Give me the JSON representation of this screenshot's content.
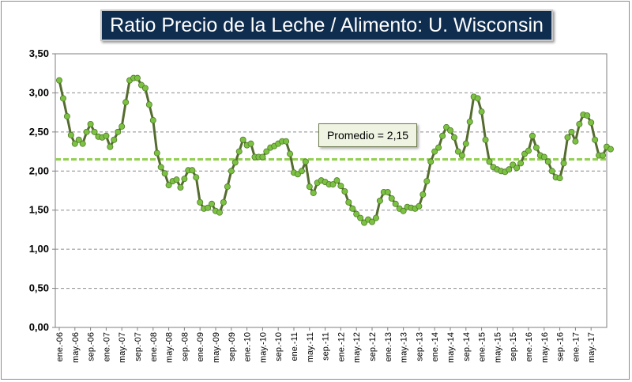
{
  "chart_data": {
    "type": "line",
    "title": "Ratio Precio de la Leche / Alimento: U. Wisconsin",
    "xlabel": "",
    "ylabel": "",
    "ylim": [
      0,
      3.5
    ],
    "yticks": [
      "0,00",
      "0,50",
      "1,00",
      "1,50",
      "2,00",
      "2,50",
      "3,00",
      "3,50"
    ],
    "ytick_values": [
      0,
      0.5,
      1.0,
      1.5,
      2.0,
      2.5,
      3.0,
      3.5
    ],
    "xtick_labels": [
      "ene.-06",
      "may.-06",
      "sep.-06",
      "ene.-07",
      "may.-07",
      "sep.-07",
      "ene.-08",
      "may.-08",
      "sep.-08",
      "ene.-09",
      "may.-09",
      "sep.-09",
      "ene.-10",
      "may.-10",
      "sep.-10",
      "ene.-11",
      "may.-11",
      "sep.-11",
      "ene.-12",
      "may.-12",
      "sep.-12",
      "ene.-13",
      "may.-13",
      "sep.-13",
      "ene.-14",
      "may.-14",
      "sep.-14",
      "ene.-15",
      "may.-15",
      "sep.-15",
      "ene.-16",
      "may.-16",
      "sep.-16",
      "ene.-17",
      "may.-17"
    ],
    "grid": "horizontal dashed",
    "series": [
      {
        "color": "#556b2f",
        "marker_color": "#7cc242",
        "values": [
          3.16,
          2.93,
          2.7,
          2.46,
          2.35,
          2.4,
          2.35,
          2.5,
          2.6,
          2.5,
          2.44,
          2.43,
          2.45,
          2.31,
          2.4,
          2.5,
          2.57,
          2.88,
          3.16,
          3.19,
          3.19,
          3.1,
          3.06,
          2.85,
          2.65,
          2.23,
          2.05,
          1.97,
          1.82,
          1.87,
          1.89,
          1.79,
          1.9,
          2.01,
          2.01,
          1.92,
          1.6,
          1.52,
          1.53,
          1.58,
          1.49,
          1.47,
          1.6,
          1.8,
          2.0,
          2.11,
          2.25,
          2.4,
          2.33,
          2.35,
          2.18,
          2.18,
          2.18,
          2.25,
          2.3,
          2.32,
          2.35,
          2.38,
          2.38,
          2.22,
          1.98,
          1.96,
          2.0,
          2.12,
          1.8,
          1.72,
          1.85,
          1.88,
          1.86,
          1.83,
          1.83,
          1.88,
          1.81,
          1.74,
          1.6,
          1.52,
          1.45,
          1.4,
          1.34,
          1.38,
          1.35,
          1.4,
          1.62,
          1.73,
          1.73,
          1.65,
          1.58,
          1.52,
          1.49,
          1.54,
          1.53,
          1.52,
          1.55,
          1.7,
          1.87,
          2.12,
          2.25,
          2.3,
          2.45,
          2.56,
          2.52,
          2.43,
          2.25,
          2.2,
          2.35,
          2.63,
          2.95,
          2.93,
          2.76,
          2.4,
          2.12,
          2.05,
          2.02,
          2.0,
          1.99,
          2.02,
          2.08,
          2.04,
          2.1,
          2.22,
          2.26,
          2.45,
          2.3,
          2.2,
          2.18,
          2.12,
          2.0,
          1.92,
          1.91,
          2.1,
          2.43,
          2.5,
          2.38,
          2.6,
          2.72,
          2.71,
          2.62,
          2.4,
          2.2,
          2.2,
          2.31,
          2.28
        ]
      },
      {
        "type": "hline",
        "value": 2.15,
        "color": "#92d050"
      }
    ],
    "annotations": [
      {
        "text": "Promedio = 2,15"
      }
    ]
  }
}
